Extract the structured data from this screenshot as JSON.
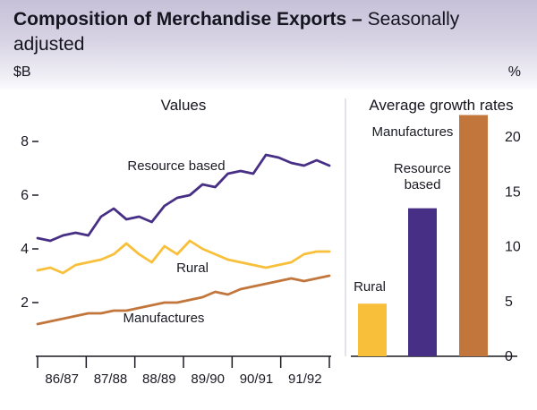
{
  "header": {
    "title_bold": "Composition of Merchandise Exports –",
    "title_tail": "Seasonally adjusted"
  },
  "panels": {
    "left_unit": "$B",
    "right_unit": "%"
  },
  "chart_data": [
    {
      "type": "line",
      "title": "Values",
      "ylabel": "$B",
      "ylim": [
        0,
        9
      ],
      "yticks": [
        2,
        4,
        6,
        8
      ],
      "x_tick_labels": [
        "86/87",
        "87/88",
        "88/89",
        "89/90",
        "90/91",
        "91/92"
      ],
      "grid": false,
      "series": [
        {
          "name": "Resource based",
          "color": "#472f85",
          "values": [
            4.4,
            4.3,
            4.5,
            4.6,
            4.5,
            5.2,
            5.5,
            5.1,
            5.2,
            5.0,
            5.6,
            5.9,
            6.0,
            6.4,
            6.3,
            6.8,
            6.9,
            6.8,
            7.5,
            7.4,
            7.2,
            7.1,
            7.3,
            7.1
          ]
        },
        {
          "name": "Rural",
          "color": "#f8c03a",
          "values": [
            3.2,
            3.3,
            3.1,
            3.4,
            3.5,
            3.6,
            3.8,
            4.2,
            3.8,
            3.5,
            4.1,
            3.8,
            4.3,
            4.0,
            3.8,
            3.6,
            3.5,
            3.4,
            3.3,
            3.4,
            3.5,
            3.8,
            3.9,
            3.9
          ]
        },
        {
          "name": "Manufactures",
          "color": "#c2763c",
          "values": [
            1.2,
            1.3,
            1.4,
            1.5,
            1.6,
            1.6,
            1.7,
            1.7,
            1.8,
            1.9,
            2.0,
            2.0,
            2.1,
            2.2,
            2.4,
            2.3,
            2.5,
            2.6,
            2.7,
            2.8,
            2.9,
            2.8,
            2.9,
            3.0
          ]
        }
      ]
    },
    {
      "type": "bar",
      "title": "Average growth rates",
      "ylabel": "%",
      "ylim": [
        0,
        22.5
      ],
      "yticks": [
        0,
        5,
        10,
        15,
        20
      ],
      "categories": [
        "Rural",
        "Resource based",
        "Manufactures"
      ],
      "values": [
        4.8,
        13.5,
        22.0
      ],
      "colors": [
        "#f8c03a",
        "#472f85",
        "#c2763c"
      ],
      "legend_position": "none"
    }
  ]
}
